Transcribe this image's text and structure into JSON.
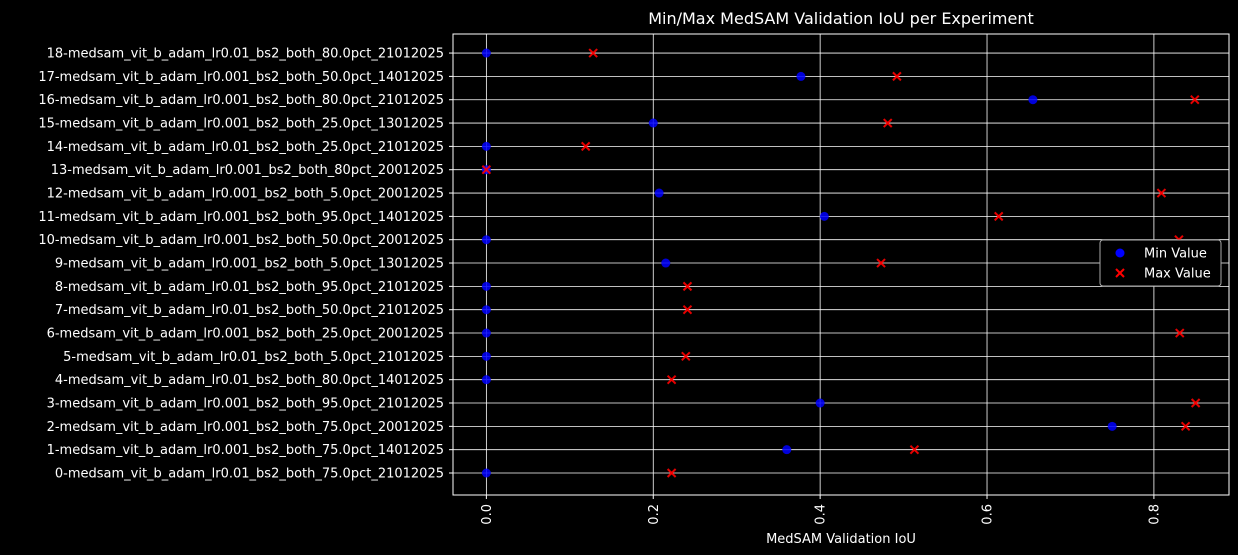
{
  "chart_data": {
    "type": "scatter",
    "title": "Min/Max MedSAM Validation IoU per Experiment",
    "xlabel": "MedSAM Validation IoU",
    "ylabel": "",
    "xlim": [
      -0.04,
      0.89
    ],
    "xticks": [
      "0.0",
      "0.2",
      "0.4",
      "0.6",
      "0.8"
    ],
    "xtick_values": [
      0.0,
      0.2,
      0.4,
      0.6,
      0.8
    ],
    "grid": true,
    "legend_position": "center-right",
    "colors": {
      "background": "#000000",
      "grid": "#ffffff",
      "min": "#0000ff",
      "max": "#ff0000"
    },
    "categories": [
      "0-medsam_vit_b_adam_lr0.01_bs2_both_75.0pct_21012025",
      "1-medsam_vit_b_adam_lr0.001_bs2_both_75.0pct_14012025",
      "2-medsam_vit_b_adam_lr0.001_bs2_both_75.0pct_20012025",
      "3-medsam_vit_b_adam_lr0.001_bs2_both_95.0pct_21012025",
      "4-medsam_vit_b_adam_lr0.01_bs2_both_80.0pct_14012025",
      "5-medsam_vit_b_adam_lr0.01_bs2_both_5.0pct_21012025",
      "6-medsam_vit_b_adam_lr0.001_bs2_both_25.0pct_20012025",
      "7-medsam_vit_b_adam_lr0.01_bs2_both_50.0pct_21012025",
      "8-medsam_vit_b_adam_lr0.01_bs2_both_95.0pct_21012025",
      "9-medsam_vit_b_adam_lr0.001_bs2_both_5.0pct_13012025",
      "10-medsam_vit_b_adam_lr0.001_bs2_both_50.0pct_20012025",
      "11-medsam_vit_b_adam_lr0.001_bs2_both_95.0pct_14012025",
      "12-medsam_vit_b_adam_lr0.001_bs2_both_5.0pct_20012025",
      "13-medsam_vit_b_adam_lr0.001_bs2_both_80pct_20012025",
      "14-medsam_vit_b_adam_lr0.01_bs2_both_25.0pct_21012025",
      "15-medsam_vit_b_adam_lr0.001_bs2_both_25.0pct_13012025",
      "16-medsam_vit_b_adam_lr0.001_bs2_both_80.0pct_21012025",
      "17-medsam_vit_b_adam_lr0.001_bs2_both_50.0pct_14012025",
      "18-medsam_vit_b_adam_lr0.01_bs2_both_80.0pct_21012025"
    ],
    "series": [
      {
        "name": "Min Value",
        "marker": "circle",
        "values": [
          0.0,
          0.36,
          0.75,
          0.4,
          0.0,
          0.0,
          0.0,
          0.0,
          0.0,
          0.215,
          0.0,
          0.405,
          0.207,
          0.0,
          0.0,
          0.2,
          0.655,
          0.377,
          0.0
        ]
      },
      {
        "name": "Max Value",
        "marker": "x",
        "values": [
          0.222,
          0.513,
          0.838,
          0.85,
          0.222,
          0.239,
          0.831,
          0.241,
          0.241,
          0.473,
          0.83,
          0.614,
          0.809,
          0.0,
          0.119,
          0.481,
          0.849,
          0.492,
          0.128
        ]
      }
    ]
  }
}
